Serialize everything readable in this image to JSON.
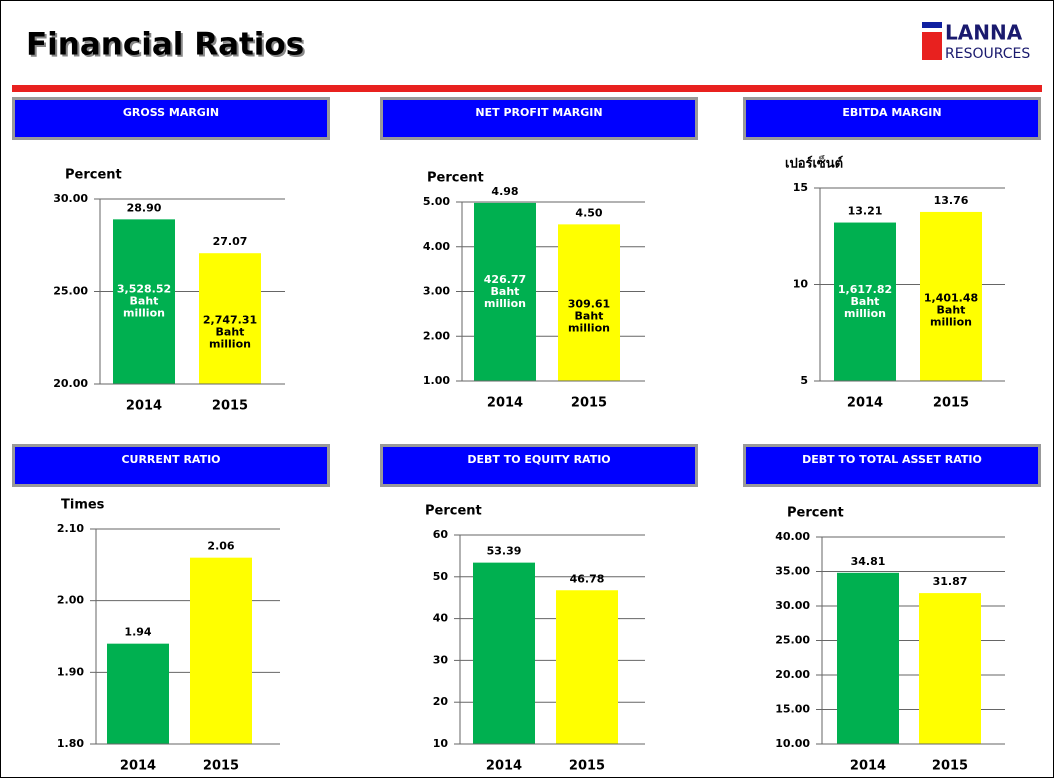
{
  "header": {
    "title": "Financial Ratios",
    "logo_top": "LANNA",
    "logo_bottom": "RESOURCES"
  },
  "chart_data": [
    {
      "type": "bar",
      "title": "GROSS MARGIN",
      "ylabel": "Percent",
      "categories": [
        "2014",
        "2015"
      ],
      "values": [
        28.9,
        27.07
      ],
      "value_labels": [
        "28.90",
        "27.07"
      ],
      "colors": [
        "#00b050",
        "#ffff00"
      ],
      "annotations": [
        [
          "3,528.52",
          "Baht",
          "million"
        ],
        [
          "2,747.31",
          "Baht",
          "million"
        ]
      ],
      "ylim": [
        20,
        30
      ],
      "yticks": [
        {
          "value": 20,
          "label": "20.00"
        },
        {
          "value": 25,
          "label": "25.00"
        },
        {
          "value": 30,
          "label": "30.00"
        }
      ],
      "grid": true
    },
    {
      "type": "bar",
      "title": "NET PROFIT MARGIN",
      "ylabel": "Percent",
      "categories": [
        "2014",
        "2015"
      ],
      "values": [
        4.98,
        4.5
      ],
      "value_labels": [
        "4.98",
        "4.50"
      ],
      "colors": [
        "#00b050",
        "#ffff00"
      ],
      "annotations": [
        [
          "426.77",
          "Baht",
          "million"
        ],
        [
          "309.61",
          "Baht",
          "million"
        ]
      ],
      "ylim": [
        1,
        5
      ],
      "yticks": [
        {
          "value": 1,
          "label": "1.00"
        },
        {
          "value": 2,
          "label": "2.00"
        },
        {
          "value": 3,
          "label": "3.00"
        },
        {
          "value": 4,
          "label": "4.00"
        },
        {
          "value": 5,
          "label": "5.00"
        }
      ],
      "grid": true
    },
    {
      "type": "bar",
      "title": "EBITDA MARGIN",
      "ylabel": "เปอร์เซ็นต์",
      "categories": [
        "2014",
        "2015"
      ],
      "values": [
        13.21,
        13.76
      ],
      "colors": [
        "#00b050",
        "#ffff00"
      ],
      "annotations": [
        [
          "1,617.82",
          "Baht",
          "million"
        ],
        [
          "1,401.48",
          "Baht",
          "million"
        ]
      ],
      "ylim": [
        5,
        15
      ],
      "yticks": [
        5,
        10,
        15
      ],
      "grid": true
    },
    {
      "type": "bar",
      "title": "CURRENT RATIO",
      "ylabel": "Times",
      "categories": [
        "2014",
        "2015"
      ],
      "values": [
        1.94,
        2.06
      ],
      "colors": [
        "#00b050",
        "#ffff00"
      ],
      "ylim": [
        1.8,
        2.1
      ],
      "yticks": [
        {
          "value": 1.8,
          "label": "1.80"
        },
        {
          "value": 1.9,
          "label": "1.90"
        },
        {
          "value": 2,
          "label": "2.00"
        },
        {
          "value": 2.1,
          "label": "2.10"
        }
      ],
      "grid": true
    },
    {
      "type": "bar",
      "title": "DEBT TO EQUITY RATIO",
      "ylabel": "Percent",
      "categories": [
        "2014",
        "2015"
      ],
      "values": [
        53.39,
        46.78
      ],
      "colors": [
        "#00b050",
        "#ffff00"
      ],
      "ylim": [
        10,
        60
      ],
      "yticks": [
        10,
        20,
        30,
        40,
        50,
        60
      ],
      "grid": true
    },
    {
      "type": "bar",
      "title": "DEBT TO TOTAL ASSET RATIO",
      "ylabel": "Percent",
      "categories": [
        "2014",
        "2015"
      ],
      "values": [
        34.81,
        31.87
      ],
      "colors": [
        "#00b050",
        "#ffff00"
      ],
      "ylim": [
        10,
        40
      ],
      "yticks": [
        {
          "value": 10,
          "label": "10.00"
        },
        {
          "value": 15,
          "label": "15.00"
        },
        {
          "value": 20,
          "label": "20.00"
        },
        {
          "value": 25,
          "label": "25.00"
        },
        {
          "value": 30,
          "label": "30.00"
        },
        {
          "value": 35,
          "label": "35.00"
        },
        {
          "value": 40,
          "label": "40.00"
        }
      ],
      "grid": true
    }
  ]
}
